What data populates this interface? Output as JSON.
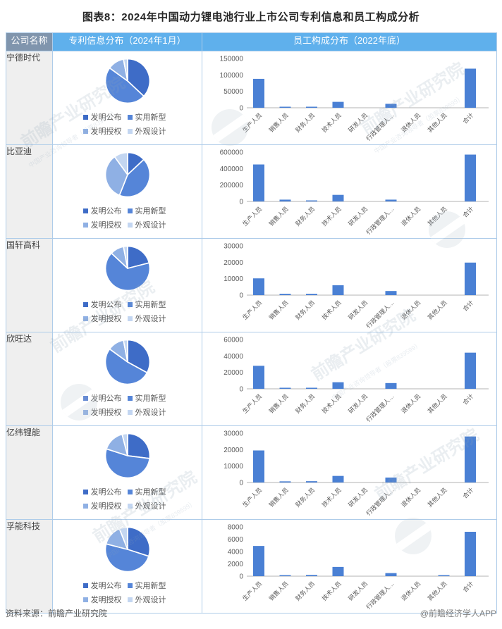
{
  "title": "图表8：2024年中国动力锂电池行业上市公司专利信息和员工构成分析",
  "table": {
    "headers": [
      "公司名称",
      "专利信息分布（2024年1月）",
      "员工构成分布（2022年底）"
    ]
  },
  "colors": {
    "bar": "#4a80d4",
    "pie": [
      "#3e6cc7",
      "#5585d8",
      "#8fb0e4",
      "#c3d6f1"
    ],
    "header_company_bg": "#8095ad",
    "header_chart_bg": "#5fb0ec",
    "row_label_bg": "#efefef",
    "border": "#aecce9",
    "axis_line": "#b3b3b3",
    "axis_text": "#595959"
  },
  "chart_data": {
    "pie_labels": [
      "发明公布",
      "实用新型",
      "发明授权",
      "外观设计"
    ],
    "bar_categories": [
      "生产人员",
      "销售人员",
      "财务人员",
      "技术人员",
      "研发人员",
      "行政管理人…",
      "退休人员",
      "其他人员",
      "合计"
    ],
    "charts": [
      {
        "company": "宁德时代",
        "pie": {
          "type": "pie",
          "values_pct": [
            37,
            48,
            12,
            3
          ]
        },
        "bar": {
          "type": "bar",
          "values": [
            88000,
            3000,
            3000,
            18000,
            0,
            12000,
            0,
            0,
            119000
          ],
          "yticks": [
            0,
            50000,
            100000,
            150000
          ],
          "ylim": [
            0,
            150000
          ]
        }
      },
      {
        "company": "比亚迪",
        "pie": {
          "type": "pie",
          "values_pct": [
            13,
            43,
            34,
            10
          ]
        },
        "bar": {
          "type": "bar",
          "values": [
            450000,
            22000,
            10000,
            80000,
            0,
            22000,
            0,
            0,
            570000
          ],
          "yticks": [
            0,
            200000,
            400000,
            600000
          ],
          "ylim": [
            0,
            600000
          ]
        }
      },
      {
        "company": "国轩高科",
        "pie": {
          "type": "pie",
          "values_pct": [
            21,
            66,
            10,
            3
          ]
        },
        "bar": {
          "type": "bar",
          "values": [
            10200,
            800,
            800,
            6000,
            0,
            2500,
            0,
            0,
            19800
          ],
          "yticks": [
            0,
            10000,
            20000,
            30000
          ],
          "ylim": [
            0,
            30000
          ]
        }
      },
      {
        "company": "欣旺达",
        "pie": {
          "type": "pie",
          "values_pct": [
            33,
            52,
            12,
            3
          ]
        },
        "bar": {
          "type": "bar",
          "values": [
            28000,
            1300,
            1300,
            8000,
            0,
            7000,
            0,
            0,
            44000
          ],
          "yticks": [
            0,
            20000,
            40000,
            60000
          ],
          "ylim": [
            0,
            60000
          ]
        }
      },
      {
        "company": "亿纬锂能",
        "pie": {
          "type": "pie",
          "values_pct": [
            27,
            53,
            16,
            4
          ]
        },
        "bar": {
          "type": "bar",
          "values": [
            19500,
            700,
            800,
            4000,
            0,
            3000,
            0,
            0,
            28000
          ],
          "yticks": [
            0,
            10000,
            20000,
            30000
          ],
          "ylim": [
            0,
            30000
          ]
        }
      },
      {
        "company": "孚能科技",
        "pie": {
          "type": "pie",
          "values_pct": [
            30,
            49,
            15,
            6
          ]
        },
        "bar": {
          "type": "bar",
          "values": [
            4900,
            150,
            200,
            1500,
            0,
            500,
            0,
            150,
            7200
          ],
          "yticks": [
            0,
            2000,
            4000,
            6000,
            8000
          ],
          "ylim": [
            0,
            8000
          ]
        }
      }
    ]
  },
  "footer": {
    "source": "资料来源：前瞻产业研究院",
    "credit": "@前瞻经济学人APP"
  },
  "watermark": {
    "text": "前瞻产业研究院",
    "subtext": "中国产业咨询领导者（股票839599）"
  }
}
